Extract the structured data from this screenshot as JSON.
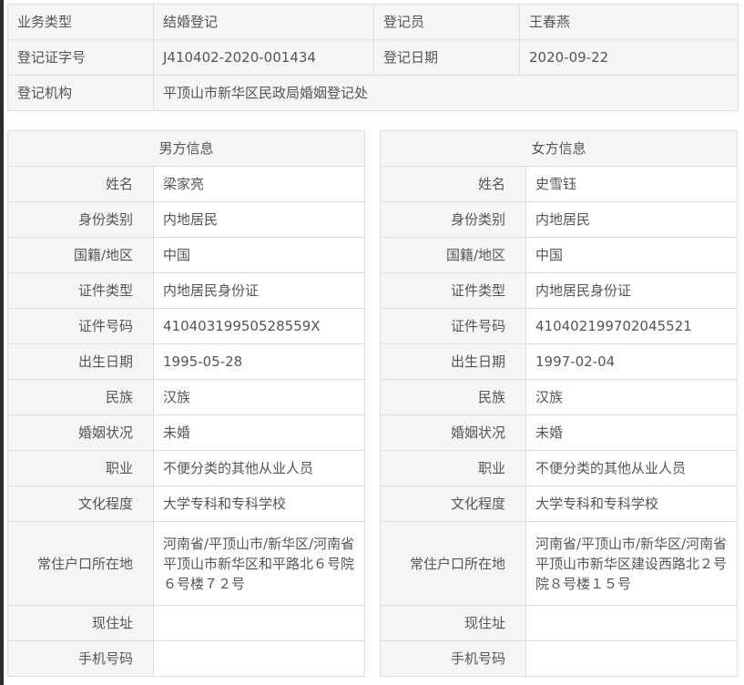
{
  "summary": {
    "rows": [
      [
        "业务类型",
        "结婚登记",
        "登记员",
        "王春燕"
      ],
      [
        "登记证字号",
        "J410402-2020-001434",
        "登记日期",
        "2020-09-22"
      ]
    ],
    "org_label": "登记机构",
    "org_value": "平顶山市新华区民政局婚姻登记处"
  },
  "male": {
    "title": "男方信息",
    "fields": [
      {
        "label": "姓名",
        "value": "梁家亮"
      },
      {
        "label": "身份类别",
        "value": "内地居民"
      },
      {
        "label": "国籍/地区",
        "value": "中国"
      },
      {
        "label": "证件类型",
        "value": "内地居民身份证"
      },
      {
        "label": "证件号码",
        "value": "41040319950528559X"
      },
      {
        "label": "出生日期",
        "value": "1995-05-28"
      },
      {
        "label": "民族",
        "value": "汉族"
      },
      {
        "label": "婚姻状况",
        "value": "未婚"
      },
      {
        "label": "职业",
        "value": "不便分类的其他从业人员"
      },
      {
        "label": "文化程度",
        "value": "大学专科和专科学校"
      },
      {
        "label": "常住户口所在地",
        "value": "河南省/平顶山市/新华区/河南省平顶山市新华区和平路北６号院６号楼７２号"
      },
      {
        "label": "现住址",
        "value": ""
      },
      {
        "label": "手机号码",
        "value": ""
      }
    ]
  },
  "female": {
    "title": "女方信息",
    "fields": [
      {
        "label": "姓名",
        "value": "史雪钰"
      },
      {
        "label": "身份类别",
        "value": "内地居民"
      },
      {
        "label": "国籍/地区",
        "value": "中国"
      },
      {
        "label": "证件类型",
        "value": "内地居民身份证"
      },
      {
        "label": "证件号码",
        "value": "410402199702045521"
      },
      {
        "label": "出生日期",
        "value": "1997-02-04"
      },
      {
        "label": "民族",
        "value": "汉族"
      },
      {
        "label": "婚姻状况",
        "value": "未婚"
      },
      {
        "label": "职业",
        "value": "不便分类的其他从业人员"
      },
      {
        "label": "文化程度",
        "value": "大学专科和专科学校"
      },
      {
        "label": "常住户口所在地",
        "value": "河南省/平顶山市/新华区/河南省平顶山市新华区建设西路北２号院８号楼１５号"
      },
      {
        "label": "现住址",
        "value": ""
      },
      {
        "label": "手机号码",
        "value": ""
      }
    ]
  }
}
